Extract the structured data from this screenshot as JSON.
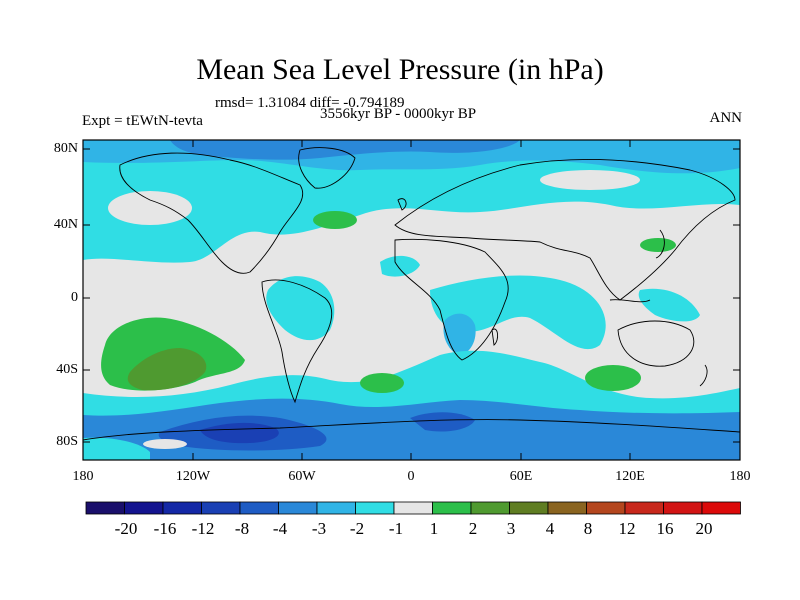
{
  "header": {
    "title": "Mean Sea Level Pressure (in hPa)",
    "stats": "rmsd= 1.31084 diff= -0.794189",
    "experiment": "Expt = tEWtN-tevta",
    "period": "3556kyr BP - 0000kyr BP",
    "season": "ANN"
  },
  "axes": {
    "y_ticks": [
      "80N",
      "40N",
      "0",
      "40S",
      "80S"
    ],
    "x_ticks": [
      "180",
      "120W",
      "60W",
      "0",
      "60E",
      "120E",
      "180"
    ]
  },
  "colorbar": {
    "labels": [
      "-20",
      "-16",
      "-12",
      "-8",
      "-4",
      "-3",
      "-2",
      "-1",
      "1",
      "2",
      "3",
      "4",
      "8",
      "12",
      "16",
      "20"
    ],
    "colors": [
      "#1a0f6b",
      "#14148f",
      "#1428a6",
      "#1a40b4",
      "#1e5cc4",
      "#2a88d8",
      "#30b4e6",
      "#30dde4",
      "#e6e6e6",
      "#2cbf4a",
      "#4f9a30",
      "#5f7d22",
      "#8a6420",
      "#b4461e",
      "#c8281c",
      "#d21414",
      "#dc0a0a"
    ]
  },
  "palette": {
    "neutral": "#e6e6e6",
    "light_cyan": "#30dde4",
    "cyan": "#30b4e6",
    "blue": "#2a88d8",
    "dark_blue": "#1e5cc4",
    "navy": "#1a40b4",
    "green": "#2cbf4a",
    "dark_green": "#4f9a30"
  }
}
